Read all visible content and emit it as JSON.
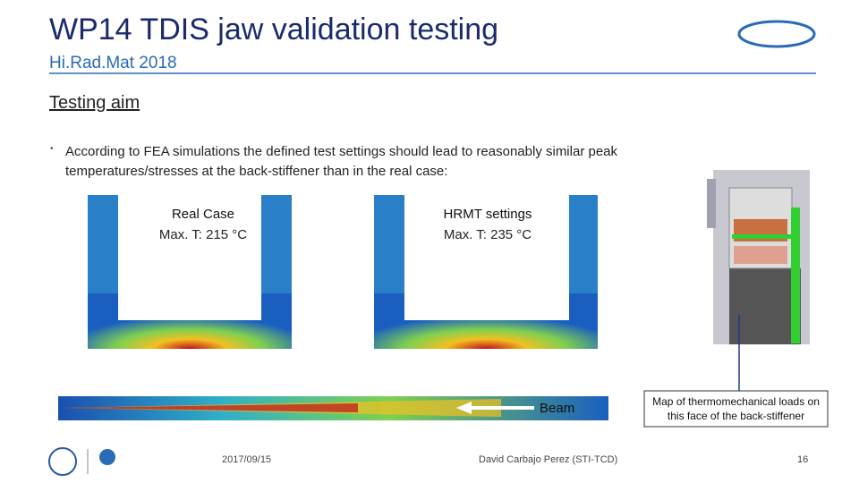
{
  "header": {
    "title": "WP14 TDIS jaw validation testing",
    "subtitle": "Hi.Rad.Mat 2018"
  },
  "section": {
    "heading": "Testing aim",
    "bullet": "According to FEA simulations the defined test settings should lead to reasonably similar peak temperatures/stresses at the back-stiffener than in the real case:"
  },
  "panels": [
    {
      "label": "Real Case",
      "detail": "Max. T: 215 °C"
    },
    {
      "label": "HRMT settings",
      "detail": "Max. T: 235 °C"
    }
  ],
  "beam_label": "Beam",
  "callout": "Map of thermomechanical loads on this face of the back-stiffener",
  "footer": {
    "date": "2017/09/15",
    "author": "David Carbajo Perez (STI-TCD)",
    "page": "16"
  }
}
